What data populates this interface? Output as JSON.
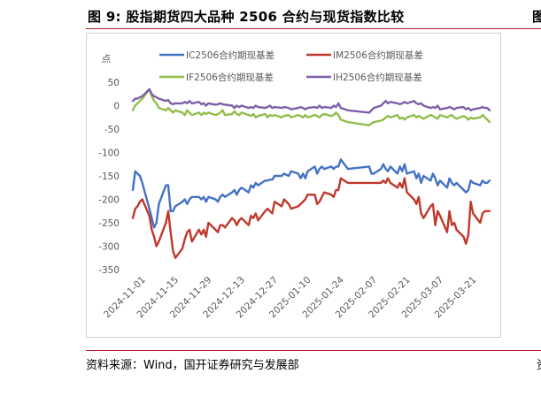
{
  "figure": {
    "title": "图 9:  股指期货四大品种 2506 合约与现货指数比较",
    "title_cut_right": "图",
    "source": "资料来源：Wind，国开证券研究与发展部",
    "source_cut_right": "资"
  },
  "chart_data": {
    "type": "line",
    "ylabel": "点",
    "ylim": [
      -350,
      50
    ],
    "yticks": [
      50,
      0,
      -50,
      -100,
      -150,
      -200,
      -250,
      -300,
      -350
    ],
    "xlim": [
      "2024-10-28",
      "2025-03-28"
    ],
    "xticks": [
      "2024-11-01",
      "2024-11-15",
      "2024-11-29",
      "2024-12-13",
      "2024-12-27",
      "2025-01-10",
      "2025-01-24",
      "2025-02-07",
      "2025-02-21",
      "2025-03-07",
      "2025-03-21"
    ],
    "grid": false,
    "legend": "top",
    "dates": [
      "2024-10-28",
      "2024-10-29",
      "2024-10-30",
      "2024-10-31",
      "2024-11-01",
      "2024-11-04",
      "2024-11-05",
      "2024-11-06",
      "2024-11-07",
      "2024-11-08",
      "2024-11-11",
      "2024-11-12",
      "2024-11-13",
      "2024-11-14",
      "2024-11-15",
      "2024-11-18",
      "2024-11-19",
      "2024-11-20",
      "2024-11-21",
      "2024-11-22",
      "2024-11-25",
      "2024-11-26",
      "2024-11-27",
      "2024-11-28",
      "2024-11-29",
      "2024-12-02",
      "2024-12-03",
      "2024-12-04",
      "2024-12-05",
      "2024-12-06",
      "2024-12-09",
      "2024-12-10",
      "2024-12-11",
      "2024-12-12",
      "2024-12-13",
      "2024-12-16",
      "2024-12-17",
      "2024-12-18",
      "2024-12-19",
      "2024-12-20",
      "2024-12-23",
      "2024-12-24",
      "2024-12-25",
      "2024-12-26",
      "2024-12-27",
      "2024-12-30",
      "2024-12-31",
      "2025-01-02",
      "2025-01-03",
      "2025-01-06",
      "2025-01-07",
      "2025-01-08",
      "2025-01-09",
      "2025-01-10",
      "2025-01-13",
      "2025-01-14",
      "2025-01-15",
      "2025-01-16",
      "2025-01-17",
      "2025-01-20",
      "2025-01-21",
      "2025-01-22",
      "2025-01-23",
      "2025-01-24",
      "2025-01-27",
      "2025-02-05",
      "2025-02-06",
      "2025-02-07",
      "2025-02-10",
      "2025-02-11",
      "2025-02-12",
      "2025-02-13",
      "2025-02-14",
      "2025-02-17",
      "2025-02-18",
      "2025-02-19",
      "2025-02-20",
      "2025-02-21",
      "2025-02-24",
      "2025-02-25",
      "2025-02-26",
      "2025-02-27",
      "2025-02-28",
      "2025-03-03",
      "2025-03-04",
      "2025-03-05",
      "2025-03-06",
      "2025-03-07",
      "2025-03-10",
      "2025-03-11",
      "2025-03-12",
      "2025-03-13",
      "2025-03-14",
      "2025-03-17",
      "2025-03-18",
      "2025-03-19",
      "2025-03-20",
      "2025-03-21",
      "2025-03-24",
      "2025-03-25",
      "2025-03-26",
      "2025-03-27",
      "2025-03-28"
    ],
    "series": [
      {
        "name": "IC2506合约期现基差",
        "color": "#4472c4",
        "values": [
          -180,
          -140,
          -145,
          -150,
          -165,
          -220,
          -240,
          -260,
          -250,
          -210,
          -170,
          -170,
          -225,
          -225,
          -215,
          -205,
          -200,
          -210,
          -200,
          -195,
          -195,
          -200,
          -195,
          -205,
          -195,
          -200,
          -205,
          -195,
          -190,
          -195,
          -185,
          -180,
          -190,
          -180,
          -175,
          -185,
          -170,
          -175,
          -165,
          -170,
          -160,
          -160,
          -158,
          -158,
          -150,
          -150,
          -145,
          -150,
          -140,
          -145,
          -155,
          -145,
          -155,
          -140,
          -130,
          -145,
          -135,
          -130,
          -135,
          -130,
          -135,
          -130,
          -130,
          -115,
          -135,
          -130,
          -145,
          -145,
          -135,
          -125,
          -135,
          -140,
          -130,
          -145,
          -130,
          -140,
          -125,
          -145,
          -140,
          -155,
          -145,
          -165,
          -150,
          -160,
          -145,
          -155,
          -170,
          -160,
          -175,
          -155,
          -165,
          -170,
          -165,
          -180,
          -185,
          -180,
          -160,
          -165,
          -170,
          -160,
          -165,
          -165,
          -160
        ]
      },
      {
        "name": "IM2506合约期现基差",
        "color": "#c0392b",
        "values": [
          -240,
          -220,
          -215,
          -205,
          -200,
          -235,
          -265,
          -280,
          -300,
          -290,
          -250,
          -225,
          -270,
          -310,
          -325,
          -305,
          -285,
          -270,
          -265,
          -290,
          -265,
          -275,
          -265,
          -280,
          -250,
          -265,
          -270,
          -255,
          -255,
          -260,
          -240,
          -245,
          -255,
          -245,
          -240,
          -255,
          -235,
          -240,
          -230,
          -245,
          -225,
          -220,
          -225,
          -230,
          -205,
          -215,
          -200,
          -210,
          -220,
          -215,
          -210,
          -205,
          -200,
          -190,
          -190,
          -210,
          -205,
          -195,
          -185,
          -190,
          -195,
          -180,
          -180,
          -155,
          -165,
          -165,
          -165,
          -165,
          -165,
          -160,
          -165,
          -155,
          -165,
          -175,
          -165,
          -175,
          -155,
          -185,
          -200,
          -210,
          -195,
          -230,
          -240,
          -215,
          -210,
          -255,
          -225,
          -235,
          -270,
          -225,
          -255,
          -250,
          -265,
          -280,
          -295,
          -275,
          -205,
          -230,
          -250,
          -230,
          -225,
          -225,
          -225
        ]
      },
      {
        "name": "IF2506合约期现基差",
        "color": "#92bd4c",
        "values": [
          -10,
          0,
          5,
          10,
          15,
          35,
          20,
          10,
          5,
          -5,
          -10,
          -5,
          -10,
          -15,
          -10,
          -15,
          -20,
          -10,
          -15,
          -20,
          -15,
          -20,
          -15,
          -18,
          -15,
          -20,
          -18,
          -15,
          -10,
          -20,
          -18,
          -12,
          -18,
          -20,
          -15,
          -20,
          -22,
          -18,
          -25,
          -22,
          -18,
          -25,
          -20,
          -22,
          -20,
          -25,
          -22,
          -20,
          -25,
          -20,
          -22,
          -25,
          -20,
          -25,
          -20,
          -22,
          -25,
          -20,
          -18,
          -22,
          -20,
          -15,
          -20,
          -30,
          -35,
          -42,
          -38,
          -35,
          -32,
          -30,
          -25,
          -22,
          -25,
          -20,
          -28,
          -25,
          -30,
          -25,
          -20,
          -25,
          -22,
          -25,
          -28,
          -20,
          -22,
          -25,
          -28,
          -20,
          -25,
          -22,
          -20,
          -25,
          -28,
          -22,
          -25,
          -30,
          -25,
          -28,
          -25,
          -20,
          -25,
          -30,
          -35
        ]
      },
      {
        "name": "IH2506合约期现基差",
        "color": "#7f5fa8",
        "values": [
          10,
          15,
          15,
          18,
          20,
          35,
          25,
          20,
          18,
          15,
          10,
          12,
          5,
          3,
          5,
          5,
          8,
          5,
          10,
          5,
          8,
          3,
          5,
          0,
          5,
          2,
          3,
          5,
          3,
          2,
          0,
          -5,
          0,
          -3,
          0,
          -5,
          -3,
          -5,
          0,
          -3,
          -5,
          -3,
          0,
          -5,
          -3,
          -5,
          -3,
          -5,
          -8,
          -5,
          -3,
          -5,
          -8,
          -5,
          -3,
          -5,
          0,
          -5,
          -3,
          -5,
          0,
          -3,
          5,
          -5,
          -10,
          -15,
          -10,
          -5,
          0,
          5,
          10,
          5,
          8,
          5,
          3,
          5,
          8,
          5,
          10,
          5,
          3,
          5,
          0,
          -5,
          -3,
          -5,
          0,
          -8,
          -5,
          -3,
          -5,
          -8,
          -5,
          -3,
          -8,
          -5,
          -10,
          -8,
          -5,
          -3,
          -5,
          -5,
          -10
        ]
      }
    ]
  }
}
